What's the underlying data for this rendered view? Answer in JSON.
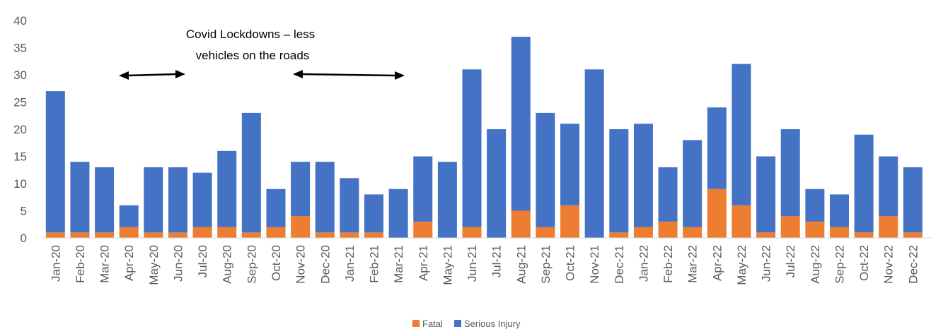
{
  "chart_data": {
    "type": "bar",
    "stacked": true,
    "title": "",
    "xlabel": "",
    "ylabel": "",
    "ylim": [
      0,
      40
    ],
    "yticks": [
      0,
      5,
      10,
      15,
      20,
      25,
      30,
      35,
      40
    ],
    "grid": false,
    "legend_position": "bottom",
    "categories": [
      "Jan-20",
      "Feb-20",
      "Mar-20",
      "Apr-20",
      "May-20",
      "Jun-20",
      "Jul-20",
      "Aug-20",
      "Sep-20",
      "Oct-20",
      "Nov-20",
      "Dec-20",
      "Jan-21",
      "Feb-21",
      "Mar-21",
      "Apr-21",
      "May-21",
      "Jun-21",
      "Jul-21",
      "Aug-21",
      "Sep-21",
      "Oct-21",
      "Nov-21",
      "Dec-21",
      "Jan-22",
      "Feb-22",
      "Mar-22",
      "Apr-22",
      "May-22",
      "Jun-22",
      "Jul-22",
      "Aug-22",
      "Sep-22",
      "Oct-22",
      "Nov-22",
      "Dec-22"
    ],
    "series": [
      {
        "name": "Fatal",
        "color": "#ED7D31",
        "values": [
          1,
          1,
          1,
          2,
          1,
          1,
          2,
          2,
          1,
          2,
          4,
          1,
          1,
          1,
          0,
          3,
          0,
          2,
          0,
          5,
          2,
          6,
          0,
          1,
          2,
          3,
          2,
          9,
          6,
          1,
          4,
          3,
          2,
          1,
          4,
          1
        ]
      },
      {
        "name": "Serious Injury",
        "color": "#4472C4",
        "values": [
          26,
          13,
          12,
          4,
          12,
          12,
          10,
          14,
          22,
          7,
          10,
          13,
          10,
          7,
          9,
          12,
          14,
          29,
          20,
          32,
          21,
          15,
          31,
          19,
          19,
          10,
          16,
          15,
          26,
          14,
          16,
          6,
          6,
          18,
          11,
          12
        ]
      }
    ],
    "annotations": [
      {
        "text_lines": [
          "Covid Lockdowns – less",
          "vehicles on the roads"
        ]
      }
    ]
  }
}
